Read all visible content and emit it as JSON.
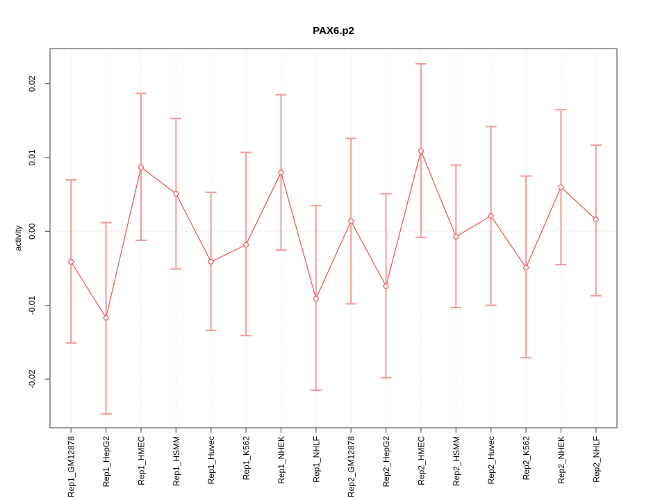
{
  "chart_data": {
    "type": "line",
    "title": "PAX6.p2",
    "xlabel": "",
    "ylabel": "activity",
    "grid": "dotted vertical gridline at every category; dotted horizontal line at y=0",
    "legend_position": "none",
    "marker": "open-circle",
    "ylim": [
      -0.0265,
      0.0248
    ],
    "yticks": [
      {
        "value": 0.02,
        "label": "0.02"
      },
      {
        "value": 0.01,
        "label": "0.01"
      },
      {
        "value": 0.0,
        "label": "0.00"
      },
      {
        "value": -0.01,
        "label": "-0.01"
      },
      {
        "value": -0.02,
        "label": "-0.02"
      }
    ],
    "categories": [
      "Rep1_GM12878",
      "Rep1_HepG2",
      "Rep1_HMEC",
      "Rep1_HSMM",
      "Rep1_Huvec",
      "Rep1_K562",
      "Rep1_NHEK",
      "Rep1_NHLF",
      "Rep2_GM12878",
      "Rep2_HepG2",
      "Rep2_HMEC",
      "Rep2_HSMM",
      "Rep2_Huvec",
      "Rep2_K562",
      "Rep2_NHEK",
      "Rep2_NHLF"
    ],
    "series": [
      {
        "name": "activity",
        "values": [
          -0.0041,
          -0.0117,
          0.0087,
          0.0051,
          -0.0041,
          -0.0018,
          0.008,
          -0.0091,
          0.0014,
          -0.0074,
          0.0109,
          -0.0007,
          0.0021,
          -0.0049,
          0.006,
          0.0016
        ],
        "upper": [
          0.007,
          0.0012,
          0.0187,
          0.0153,
          0.0053,
          0.0107,
          0.0185,
          0.0035,
          0.0126,
          0.0051,
          0.0227,
          0.009,
          0.0142,
          0.0075,
          0.0165,
          0.0117
        ],
        "lower": [
          -0.0151,
          -0.0247,
          -0.0012,
          -0.0051,
          -0.0134,
          -0.0141,
          -0.0025,
          -0.0215,
          -0.0098,
          -0.0198,
          -0.0008,
          -0.0103,
          -0.01,
          -0.0171,
          -0.0045,
          -0.0087
        ]
      }
    ],
    "colors": {
      "line": "#ec5b5b",
      "error_bar": "#f49a9a",
      "marker_stroke": "#ec5b5b",
      "marker_fill": "#ffffff",
      "gridline": "#dcdcdc",
      "zero_line": "#d4d4d4",
      "box": "#5a5a5a",
      "text": "#000000"
    }
  }
}
